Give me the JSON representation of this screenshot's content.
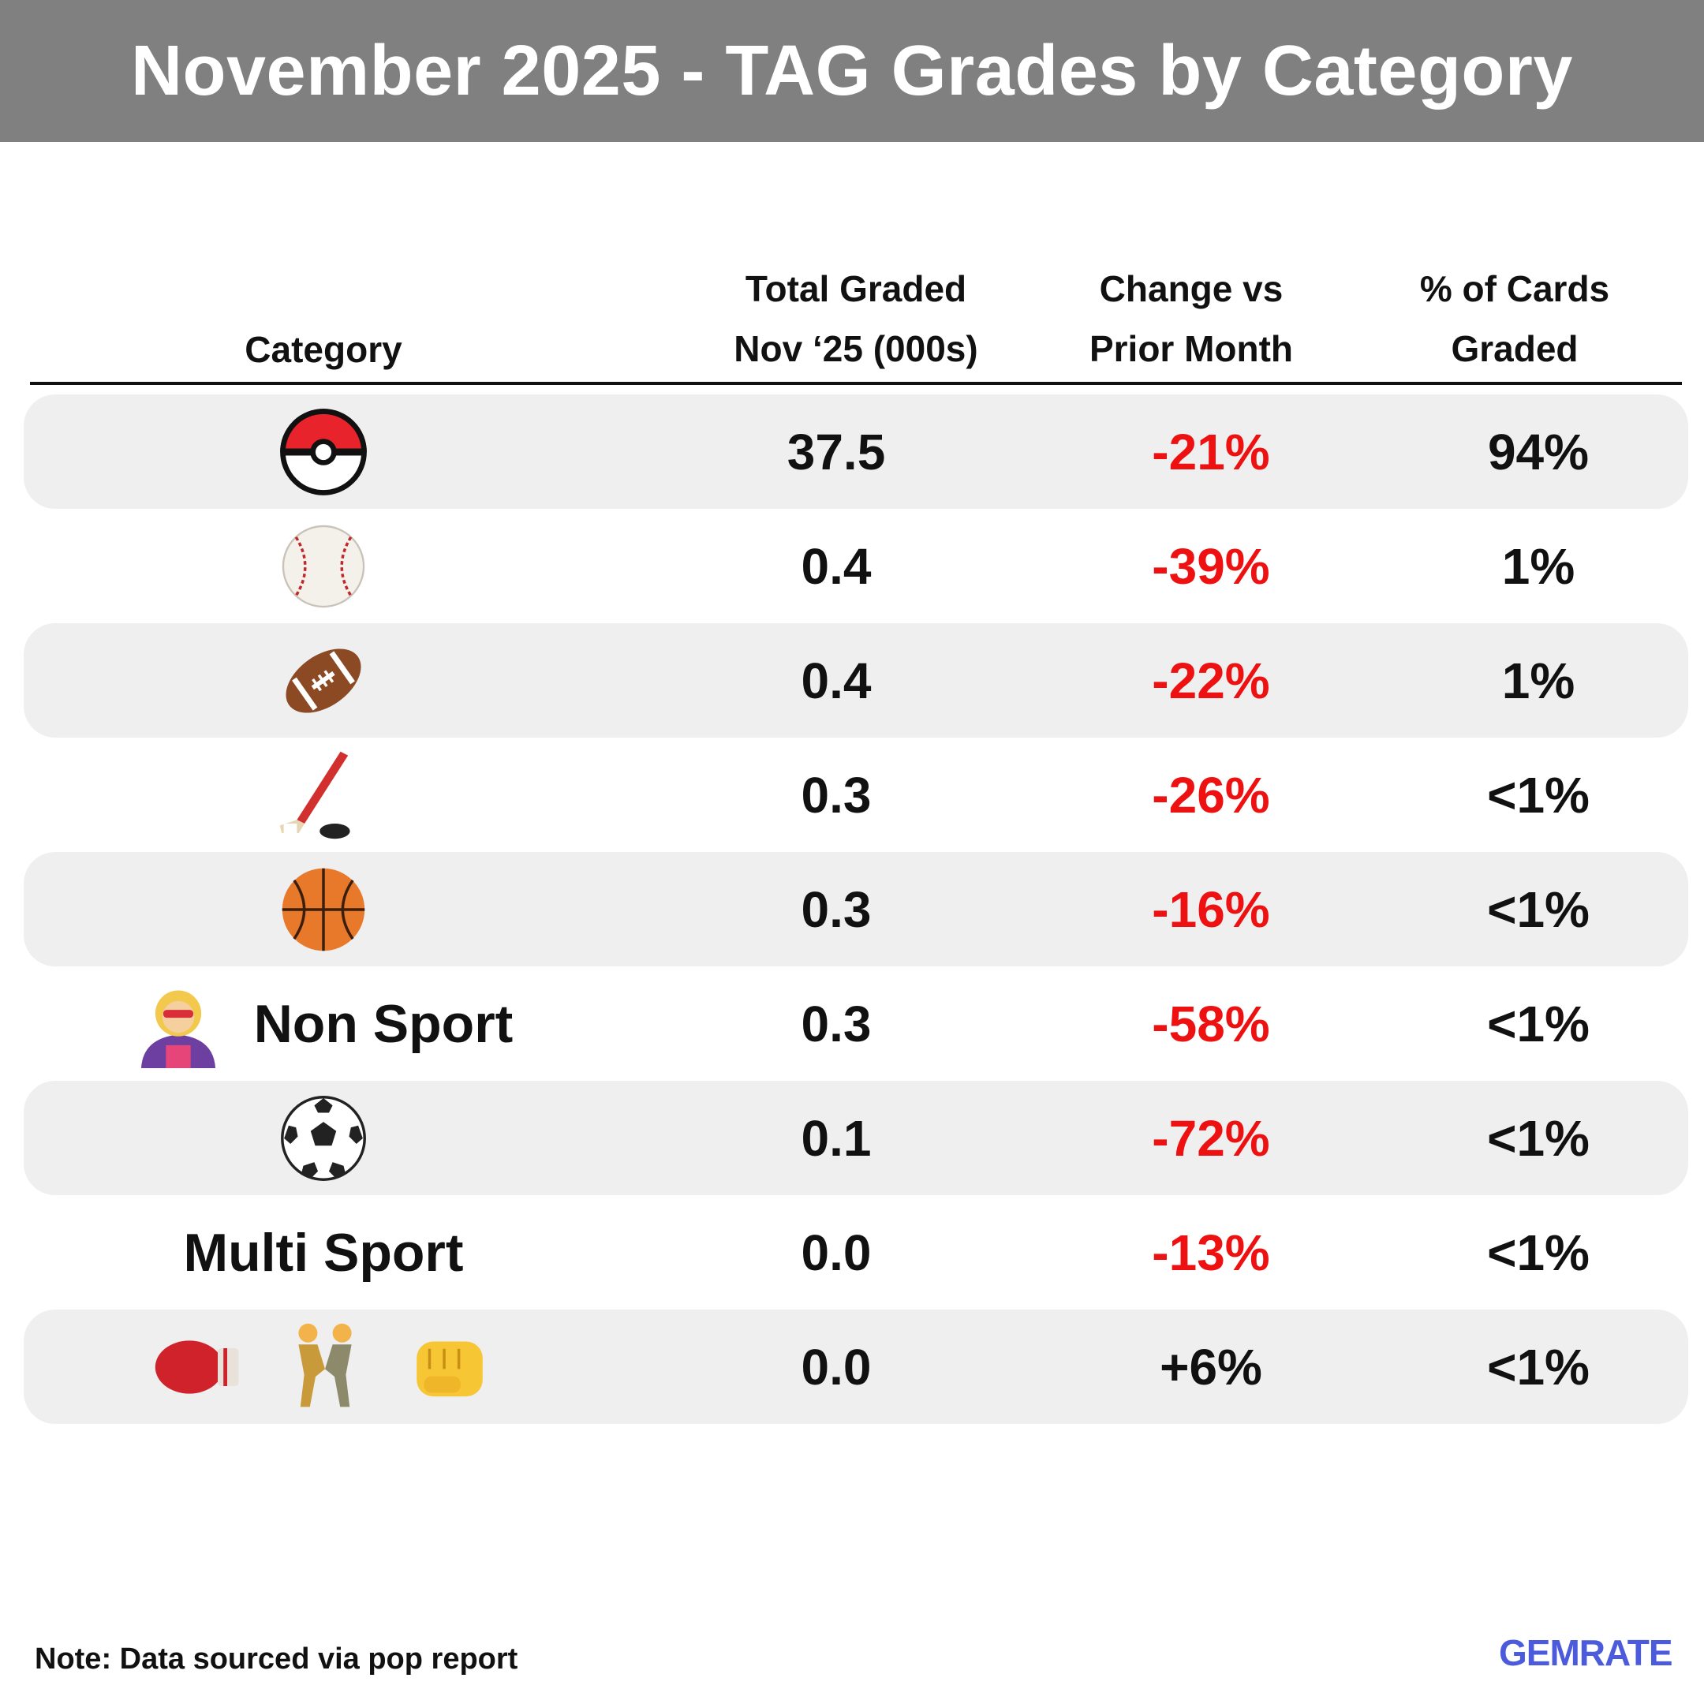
{
  "title": "November 2025 - TAG Grades by Category",
  "columns": {
    "category": "Category",
    "total_l1": "Total Graded",
    "total_l2": "Nov ‘25 (000s)",
    "change_l1": "Change vs",
    "change_l2": "Prior Month",
    "pct_l1": "% of Cards",
    "pct_l2": "Graded"
  },
  "colors": {
    "banner": "#808080",
    "negative": "#ee1111",
    "positive": "#111111",
    "shaded_row": "#efefef"
  },
  "rows": [
    {
      "icons": [
        "pokeball-icon"
      ],
      "label": "",
      "total": "37.5",
      "change": "-21%",
      "pct": "94%"
    },
    {
      "icons": [
        "baseball-icon"
      ],
      "label": "",
      "total": "0.4",
      "change": "-39%",
      "pct": "1%"
    },
    {
      "icons": [
        "football-icon"
      ],
      "label": "",
      "total": "0.4",
      "change": "-22%",
      "pct": "1%"
    },
    {
      "icons": [
        "hockey-icon"
      ],
      "label": "",
      "total": "0.3",
      "change": "-26%",
      "pct": "<1%"
    },
    {
      "icons": [
        "basketball-icon"
      ],
      "label": "",
      "total": "0.3",
      "change": "-16%",
      "pct": "<1%"
    },
    {
      "icons": [
        "superhero-icon"
      ],
      "label": "Non Sport",
      "total": "0.3",
      "change": "-58%",
      "pct": "<1%"
    },
    {
      "icons": [
        "soccer-ball-icon"
      ],
      "label": "",
      "total": "0.1",
      "change": "-72%",
      "pct": "<1%"
    },
    {
      "icons": [],
      "label": "Multi Sport",
      "total": "0.0",
      "change": "-13%",
      "pct": "<1%"
    },
    {
      "icons": [
        "boxing-glove-icon",
        "wrestlers-icon",
        "fist-icon"
      ],
      "label": "",
      "total": "0.0",
      "change": "+6%",
      "pct": "<1%"
    }
  ],
  "chart_data": {
    "type": "table",
    "title": "November 2025 - TAG Grades by Category",
    "columns": [
      "Category",
      "Total Graded Nov ‘25 (000s)",
      "Change vs Prior Month",
      "% of Cards Graded"
    ],
    "categories": [
      "Pokemon",
      "Baseball",
      "Football",
      "Hockey",
      "Basketball",
      "Non Sport",
      "Soccer",
      "Multi Sport",
      "Boxing / Wrestling / MMA"
    ],
    "total_graded_000s": [
      37.5,
      0.4,
      0.4,
      0.3,
      0.3,
      0.3,
      0.1,
      0.0,
      0.0
    ],
    "change_vs_prior_month_pct": [
      -21,
      -39,
      -22,
      -26,
      -16,
      -58,
      -72,
      -13,
      6
    ],
    "pct_of_cards_graded": [
      "94%",
      "1%",
      "1%",
      "<1%",
      "<1%",
      "<1%",
      "<1%",
      "<1%",
      "<1%"
    ]
  },
  "note": "Note: Data sourced via pop report",
  "logo": "GEMRATE"
}
